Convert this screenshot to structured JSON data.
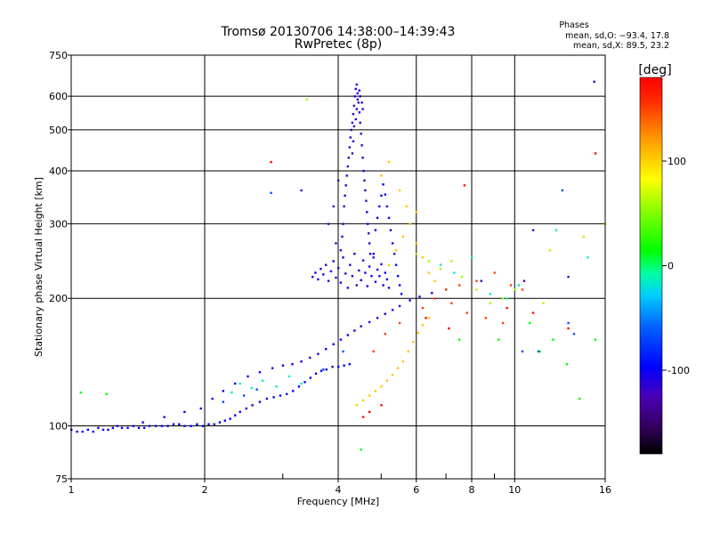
{
  "chart_data": {
    "type": "scatter",
    "title": "Tromsø 20130706 14:38:00–14:39:43",
    "subtitle": "RwPretec (8p)",
    "stats": {
      "heading": "Phases",
      "line1": "mean, sd,O: −93.4, 17.8",
      "line2": "mean, sd,X:  89.5, 23.2"
    },
    "xlabel": "Frequency [MHz]",
    "ylabel": "Stationary phase Virtual Height [km]",
    "x_scale": "log",
    "y_scale": "log",
    "xlim": [
      1,
      16
    ],
    "ylim": [
      75,
      750
    ],
    "xticks": [
      1,
      2,
      4,
      6,
      8,
      10,
      16
    ],
    "xtick_labels": [
      "1",
      "2",
      "4",
      "6",
      "8",
      "10",
      "16"
    ],
    "x_minor_ticks": [
      3,
      5,
      7,
      9
    ],
    "yticks": [
      75,
      100,
      200,
      300,
      400,
      500,
      600,
      750
    ],
    "ytick_labels": [
      "75",
      "100",
      "200",
      "300",
      "400",
      "500",
      "600",
      "750"
    ],
    "grid": true,
    "colorbar": {
      "label": "[deg]",
      "range": [
        -180,
        180
      ],
      "ticks": [
        100,
        0,
        -100
      ],
      "tick_labels": [
        "100",
        "0",
        "-100"
      ]
    },
    "series": [
      {
        "color_phase": -100,
        "points": [
          [
            1.0,
            98
          ],
          [
            1.03,
            97
          ],
          [
            1.06,
            97
          ],
          [
            1.09,
            98
          ],
          [
            1.12,
            97
          ],
          [
            1.15,
            99
          ],
          [
            1.18,
            98
          ],
          [
            1.21,
            98
          ],
          [
            1.24,
            99
          ],
          [
            1.27,
            100
          ],
          [
            1.3,
            99
          ],
          [
            1.34,
            99
          ],
          [
            1.38,
            100
          ],
          [
            1.42,
            99
          ],
          [
            1.46,
            99
          ],
          [
            1.5,
            100
          ],
          [
            1.55,
            100
          ],
          [
            1.6,
            100
          ],
          [
            1.65,
            100
          ],
          [
            1.7,
            101
          ],
          [
            1.75,
            101
          ],
          [
            1.8,
            100
          ],
          [
            1.86,
            100
          ],
          [
            1.92,
            101
          ],
          [
            1.98,
            100
          ],
          [
            2.04,
            101
          ],
          [
            2.1,
            101
          ],
          [
            2.16,
            102
          ],
          [
            2.22,
            103
          ],
          [
            2.28,
            104
          ],
          [
            2.34,
            106
          ],
          [
            2.4,
            108
          ],
          [
            2.48,
            110
          ],
          [
            2.56,
            112
          ],
          [
            2.66,
            114
          ],
          [
            2.76,
            116
          ],
          [
            2.86,
            117
          ],
          [
            2.96,
            118
          ],
          [
            3.06,
            119
          ],
          [
            3.16,
            121
          ],
          [
            3.26,
            124
          ],
          [
            3.36,
            127
          ],
          [
            3.46,
            130
          ],
          [
            3.56,
            133
          ],
          [
            3.66,
            135
          ],
          [
            3.76,
            136
          ],
          [
            3.88,
            138
          ],
          [
            4.0,
            138
          ],
          [
            4.12,
            139
          ],
          [
            4.24,
            140
          ]
        ]
      },
      {
        "color_phase": -105,
        "points": [
          [
            1.45,
            102
          ],
          [
            1.62,
            105
          ],
          [
            1.8,
            108
          ],
          [
            1.96,
            110
          ],
          [
            2.08,
            116
          ],
          [
            2.2,
            121
          ],
          [
            2.34,
            126
          ],
          [
            2.5,
            131
          ],
          [
            2.66,
            134
          ],
          [
            2.84,
            137
          ],
          [
            3.0,
            139
          ],
          [
            3.15,
            140
          ],
          [
            3.3,
            142
          ],
          [
            3.45,
            145
          ],
          [
            3.6,
            148
          ],
          [
            3.75,
            152
          ],
          [
            3.9,
            156
          ],
          [
            4.05,
            160
          ],
          [
            4.2,
            164
          ],
          [
            4.35,
            168
          ],
          [
            4.5,
            172
          ],
          [
            4.7,
            176
          ],
          [
            4.9,
            180
          ],
          [
            5.1,
            184
          ],
          [
            5.3,
            188
          ],
          [
            5.5,
            192
          ],
          [
            5.8,
            198
          ],
          [
            6.1,
            202
          ],
          [
            6.5,
            206
          ],
          [
            7.0,
            210
          ]
        ]
      },
      {
        "color_phase": -110,
        "points": [
          [
            3.5,
            225
          ],
          [
            3.55,
            230
          ],
          [
            3.6,
            222
          ],
          [
            3.65,
            235
          ],
          [
            3.7,
            228
          ],
          [
            3.75,
            240
          ],
          [
            3.8,
            220
          ],
          [
            3.85,
            232
          ],
          [
            3.9,
            245
          ],
          [
            3.95,
            224
          ],
          [
            4.0,
            236
          ],
          [
            4.05,
            218
          ],
          [
            4.1,
            250
          ],
          [
            4.15,
            229
          ],
          [
            4.2,
            212
          ],
          [
            4.25,
            240
          ],
          [
            4.3,
            226
          ],
          [
            4.35,
            255
          ],
          [
            4.4,
            215
          ],
          [
            4.45,
            233
          ],
          [
            4.5,
            221
          ],
          [
            4.55,
            246
          ],
          [
            4.6,
            230
          ],
          [
            4.65,
            214
          ],
          [
            4.7,
            238
          ],
          [
            4.75,
            226
          ],
          [
            4.8,
            250
          ],
          [
            4.85,
            219
          ],
          [
            4.9,
            234
          ],
          [
            4.95,
            226
          ],
          [
            5.0,
            241
          ],
          [
            5.05,
            215
          ],
          [
            5.1,
            230
          ],
          [
            5.15,
            222
          ],
          [
            5.2,
            212
          ]
        ]
      },
      {
        "color_phase": -115,
        "points": [
          [
            4.05,
            260
          ],
          [
            4.08,
            280
          ],
          [
            4.1,
            300
          ],
          [
            4.12,
            330
          ],
          [
            4.14,
            350
          ],
          [
            4.16,
            370
          ],
          [
            4.18,
            390
          ],
          [
            4.2,
            410
          ],
          [
            4.22,
            430
          ],
          [
            4.24,
            455
          ],
          [
            4.26,
            480
          ],
          [
            4.28,
            500
          ],
          [
            4.3,
            520
          ],
          [
            4.32,
            545
          ],
          [
            4.34,
            570
          ],
          [
            4.36,
            600
          ],
          [
            4.38,
            625
          ],
          [
            4.4,
            640
          ],
          [
            4.42,
            610
          ],
          [
            4.44,
            580
          ],
          [
            4.46,
            550
          ],
          [
            4.48,
            520
          ],
          [
            4.5,
            490
          ],
          [
            4.52,
            460
          ],
          [
            4.54,
            430
          ],
          [
            4.56,
            400
          ],
          [
            4.58,
            380
          ],
          [
            4.6,
            360
          ],
          [
            4.62,
            340
          ],
          [
            4.64,
            320
          ],
          [
            4.66,
            300
          ],
          [
            4.68,
            285
          ],
          [
            4.7,
            270
          ],
          [
            4.72,
            255
          ],
          [
            4.3,
            440
          ],
          [
            4.32,
            470
          ],
          [
            4.34,
            510
          ],
          [
            4.38,
            530
          ],
          [
            4.4,
            560
          ],
          [
            4.42,
            590
          ],
          [
            4.46,
            620
          ],
          [
            4.48,
            600
          ],
          [
            4.52,
            580
          ],
          [
            4.54,
            560
          ]
        ]
      },
      {
        "color_phase": -95,
        "points": [
          [
            4.8,
            255
          ],
          [
            4.85,
            290
          ],
          [
            4.9,
            310
          ],
          [
            4.95,
            330
          ],
          [
            5.0,
            350
          ],
          [
            5.05,
            372
          ],
          [
            5.1,
            352
          ],
          [
            5.15,
            330
          ],
          [
            5.2,
            310
          ],
          [
            5.25,
            290
          ],
          [
            5.3,
            270
          ],
          [
            5.35,
            255
          ],
          [
            5.4,
            240
          ],
          [
            5.45,
            226
          ],
          [
            5.5,
            215
          ],
          [
            5.55,
            205
          ]
        ]
      },
      {
        "color_phase": 105,
        "points": [
          [
            4.4,
            112
          ],
          [
            4.55,
            115
          ],
          [
            4.7,
            118
          ],
          [
            4.85,
            121
          ],
          [
            5.0,
            124
          ],
          [
            5.15,
            128
          ],
          [
            5.3,
            132
          ],
          [
            5.45,
            137
          ],
          [
            5.6,
            142
          ],
          [
            5.75,
            150
          ],
          [
            5.9,
            158
          ],
          [
            6.05,
            166
          ],
          [
            6.2,
            173
          ],
          [
            6.4,
            180
          ],
          [
            5.2,
            240
          ],
          [
            5.4,
            260
          ],
          [
            5.6,
            280
          ],
          [
            5.8,
            300
          ],
          [
            6.0,
            270
          ],
          [
            6.2,
            250
          ],
          [
            6.4,
            230
          ],
          [
            6.6,
            220
          ],
          [
            5.0,
            390
          ],
          [
            5.2,
            420
          ],
          [
            5.5,
            360
          ],
          [
            5.7,
            330
          ],
          [
            6.0,
            320
          ]
        ]
      },
      {
        "color_phase": 150,
        "points": [
          [
            4.8,
            150
          ],
          [
            5.1,
            165
          ],
          [
            5.5,
            175
          ],
          [
            6.2,
            190
          ],
          [
            6.6,
            200
          ],
          [
            7.0,
            210
          ],
          [
            7.5,
            215
          ],
          [
            8.2,
            220
          ],
          [
            9.0,
            230
          ],
          [
            9.8,
            215
          ],
          [
            10.4,
            210
          ],
          [
            7.2,
            195
          ],
          [
            7.8,
            185
          ],
          [
            8.6,
            180
          ],
          [
            9.4,
            175
          ]
        ]
      },
      {
        "color_phase": 175,
        "points": [
          [
            4.55,
            105
          ],
          [
            4.7,
            108
          ],
          [
            5.0,
            112
          ],
          [
            6.3,
            180
          ],
          [
            7.1,
            170
          ],
          [
            7.7,
            370
          ],
          [
            9.6,
            190
          ],
          [
            11.0,
            185
          ],
          [
            13.2,
            170
          ],
          [
            15.2,
            440
          ],
          [
            2.82,
            420
          ]
        ]
      },
      {
        "color_phase": -15,
        "points": [
          [
            2.3,
            120
          ],
          [
            2.4,
            126
          ],
          [
            2.55,
            123
          ],
          [
            2.7,
            128
          ],
          [
            2.9,
            124
          ],
          [
            3.1,
            131
          ],
          [
            3.3,
            126
          ],
          [
            6.8,
            240
          ],
          [
            7.3,
            230
          ],
          [
            8.0,
            250
          ],
          [
            8.8,
            205
          ],
          [
            9.6,
            200
          ],
          [
            10.2,
            215
          ],
          [
            12.4,
            290
          ],
          [
            14.6,
            250
          ]
        ]
      },
      {
        "color_phase": 60,
        "points": [
          [
            6.0,
            255
          ],
          [
            6.4,
            245
          ],
          [
            6.8,
            235
          ],
          [
            7.2,
            245
          ],
          [
            7.6,
            225
          ],
          [
            8.2,
            210
          ],
          [
            8.8,
            195
          ],
          [
            9.4,
            200
          ],
          [
            10.0,
            210
          ],
          [
            11.6,
            195
          ],
          [
            12.0,
            260
          ],
          [
            3.4,
            590
          ],
          [
            14.3,
            280
          ],
          [
            16.0,
            300
          ]
        ]
      },
      {
        "color_phase": 15,
        "points": [
          [
            1.05,
            120
          ],
          [
            1.2,
            119
          ],
          [
            4.5,
            88
          ],
          [
            7.5,
            160
          ],
          [
            9.2,
            160
          ],
          [
            10.8,
            175
          ],
          [
            11.4,
            150
          ],
          [
            12.2,
            160
          ],
          [
            13.1,
            140
          ],
          [
            14.0,
            116
          ],
          [
            15.2,
            160
          ]
        ]
      },
      {
        "color_phase": -65,
        "points": [
          [
            2.2,
            114
          ],
          [
            2.45,
            118
          ],
          [
            2.62,
            122
          ],
          [
            2.82,
            355
          ],
          [
            3.7,
            136
          ],
          [
            4.1,
            150
          ],
          [
            11.3,
            150
          ],
          [
            13.2,
            175
          ],
          [
            10.4,
            150
          ],
          [
            12.8,
            360
          ],
          [
            13.6,
            165
          ]
        ]
      },
      {
        "color_phase": -125,
        "points": [
          [
            3.3,
            360
          ],
          [
            4.0,
            380
          ],
          [
            3.9,
            330
          ],
          [
            3.8,
            300
          ],
          [
            3.95,
            270
          ],
          [
            15.1,
            650
          ],
          [
            11.0,
            290
          ],
          [
            10.5,
            220
          ],
          [
            13.2,
            225
          ],
          [
            8.4,
            220
          ]
        ]
      }
    ]
  }
}
